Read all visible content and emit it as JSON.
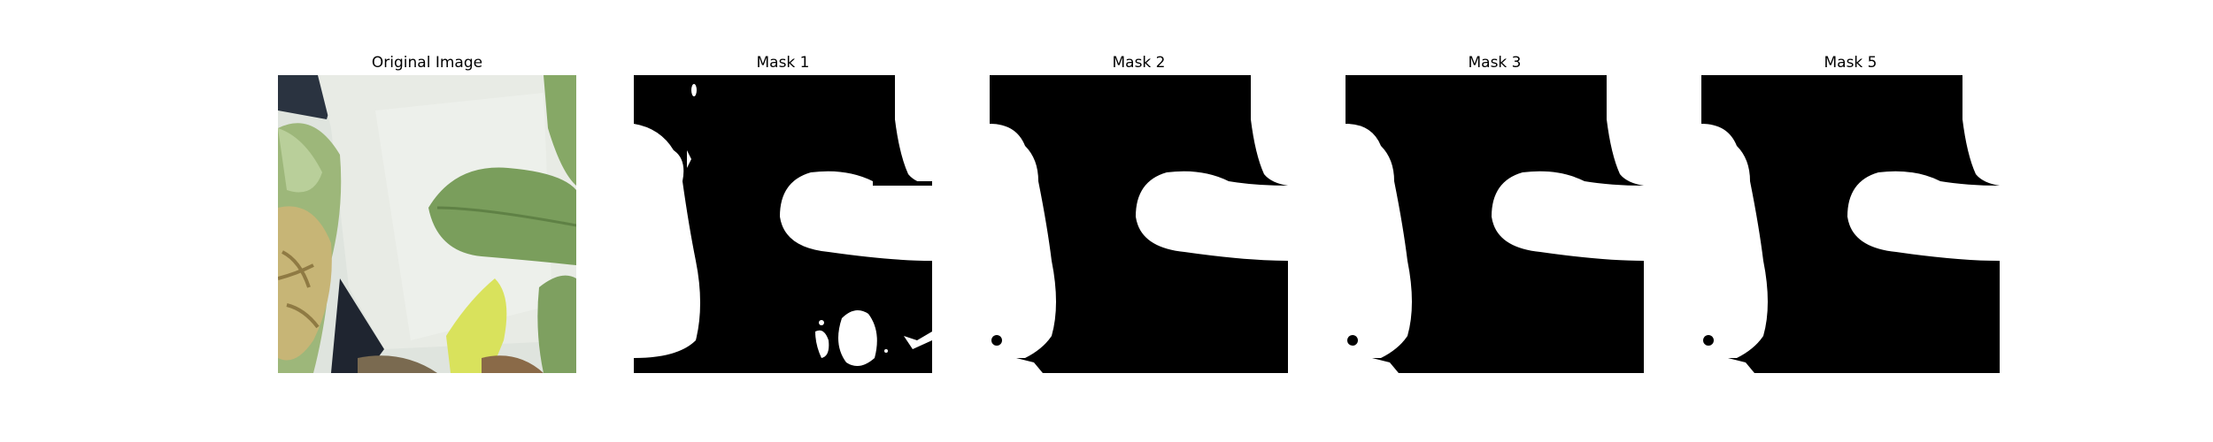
{
  "figure": {
    "panels": [
      {
        "title": "Original Image",
        "kind": "photo"
      },
      {
        "title": "Mask 1",
        "kind": "mask"
      },
      {
        "title": "Mask 2",
        "kind": "mask"
      },
      {
        "title": "Mask 3",
        "kind": "mask"
      },
      {
        "title": "Mask 5",
        "kind": "mask"
      }
    ]
  },
  "colors": {
    "background": "#ffffff",
    "mask_foreground": "#ffffff",
    "mask_background": "#000000",
    "cloth": "#e6e9e3",
    "leaf_green": "#7fa463",
    "leaf_light": "#b7cf96",
    "yellow_stem": "#d8e35a",
    "dark": "#1f2530"
  }
}
